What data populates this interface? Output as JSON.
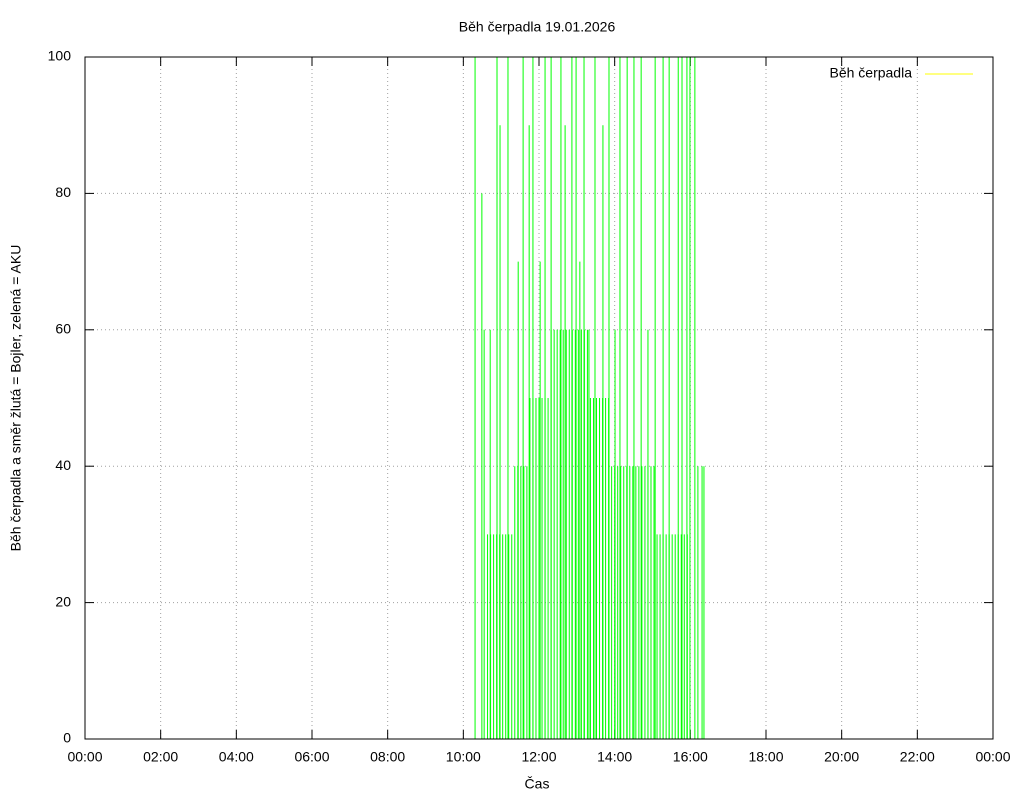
{
  "chart_data": {
    "type": "impulses",
    "title": "Běh čerpadla 19.01.2026",
    "xlabel": "Čas",
    "ylabel": "Běh čerpadla a směr žlutá = Bojler, zelená = AKU",
    "xlim": [
      0,
      24
    ],
    "xticks": [
      {
        "value": 0,
        "label": "00:00"
      },
      {
        "value": 2,
        "label": "02:00"
      },
      {
        "value": 4,
        "label": "04:00"
      },
      {
        "value": 6,
        "label": "06:00"
      },
      {
        "value": 8,
        "label": "08:00"
      },
      {
        "value": 10,
        "label": "10:00"
      },
      {
        "value": 12,
        "label": "12:00"
      },
      {
        "value": 14,
        "label": "14:00"
      },
      {
        "value": 16,
        "label": "16:00"
      },
      {
        "value": 18,
        "label": "18:00"
      },
      {
        "value": 20,
        "label": "20:00"
      },
      {
        "value": 22,
        "label": "22:00"
      },
      {
        "value": 24,
        "label": "00:00"
      }
    ],
    "ylim": [
      0,
      100
    ],
    "yticks": [
      0,
      20,
      40,
      60,
      80,
      100
    ],
    "grid": true,
    "legend": "top-right",
    "series": [
      {
        "name": "Běh čerpadla",
        "color": "#ffff00",
        "x": [],
        "values": []
      },
      {
        "color": "#00ff00",
        "x": [
          10.64,
          10.72,
          10.8,
          10.88,
          10.96,
          11.04,
          11.12,
          11.2,
          11.28,
          11.36,
          11.44,
          11.52,
          11.6,
          11.68,
          11.76,
          11.84,
          11.92,
          12.0,
          12.08,
          12.16,
          12.24,
          12.32,
          12.4,
          12.48,
          12.56,
          12.64,
          12.72,
          12.8,
          12.88,
          12.96,
          13.04,
          13.12,
          13.2,
          13.28,
          13.36,
          13.44,
          13.52,
          13.6,
          13.68,
          13.76,
          13.84,
          13.92,
          14.0,
          14.08,
          14.16,
          14.24,
          14.32,
          14.4,
          14.48,
          14.56,
          14.64,
          14.72,
          14.8,
          14.88,
          14.96,
          15.04,
          15.12,
          15.2,
          15.28,
          15.36,
          15.44,
          15.52,
          15.6,
          15.68,
          15.76,
          15.84,
          15.92,
          10.31,
          10.49,
          10.55,
          10.71,
          10.89,
          10.97,
          11.18,
          11.45,
          11.58,
          11.74,
          11.84,
          12.03,
          12.16,
          12.32,
          12.58,
          12.69,
          12.87,
          12.98,
          13.08,
          13.19,
          13.32,
          13.48,
          13.69,
          13.85,
          14.01,
          14.14,
          14.33,
          14.51,
          14.7,
          14.88,
          15.07,
          15.28,
          15.44,
          15.68,
          15.78,
          15.91,
          15.99,
          16.12,
          16.2,
          16.31,
          16.36
        ],
        "values": [
          30,
          30,
          30,
          30,
          30,
          30,
          30,
          30,
          30,
          40,
          40,
          40,
          40,
          40,
          50,
          50,
          50,
          50,
          50,
          50,
          50,
          60,
          60,
          60,
          60,
          60,
          60,
          60,
          60,
          60,
          60,
          60,
          60,
          60,
          50,
          50,
          50,
          50,
          50,
          50,
          50,
          40,
          40,
          40,
          40,
          40,
          40,
          40,
          40,
          40,
          40,
          40,
          40,
          40,
          40,
          40,
          30,
          30,
          30,
          30,
          30,
          30,
          30,
          30,
          30,
          30,
          30,
          100,
          80,
          60,
          60,
          100,
          90,
          100,
          70,
          100,
          90,
          100,
          70,
          100,
          100,
          100,
          90,
          100,
          100,
          70,
          100,
          60,
          100,
          90,
          100,
          60,
          100,
          100,
          100,
          100,
          60,
          100,
          100,
          100,
          100,
          100,
          100,
          100,
          100,
          40,
          40,
          40
        ]
      }
    ]
  }
}
